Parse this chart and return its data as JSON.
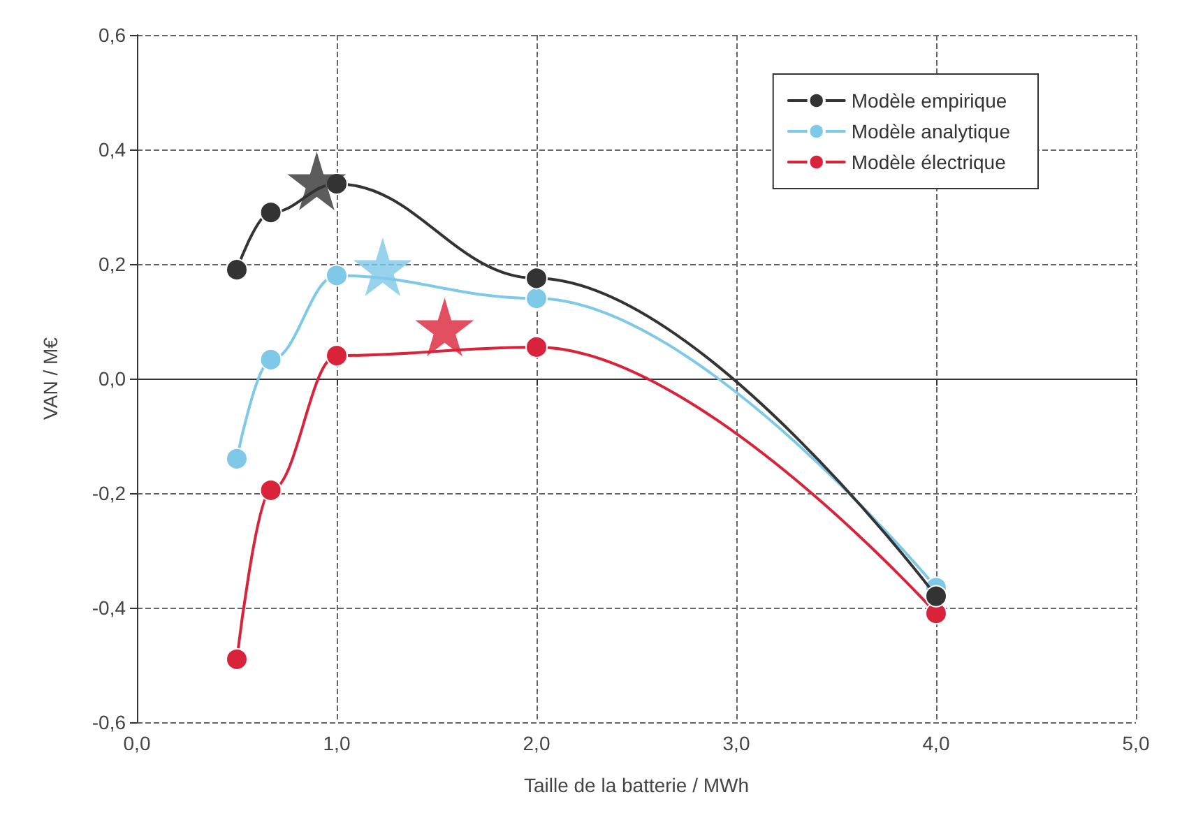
{
  "chart_data": {
    "type": "line",
    "xlabel": "Taille de la batterie / MWh",
    "ylabel": "VAN / M€",
    "xlim": [
      0,
      5
    ],
    "xticks": [
      {
        "value": 0,
        "label": "0,0"
      },
      {
        "value": 1,
        "label": "1,0"
      },
      {
        "value": 2,
        "label": "2,0"
      },
      {
        "value": 3,
        "label": "3,0"
      },
      {
        "value": 4,
        "label": "4,0"
      },
      {
        "value": 5,
        "label": "5,0"
      }
    ],
    "ylim": [
      -0.6,
      0.6
    ],
    "yticks": [
      {
        "value": -0.6,
        "label": "-0,6"
      },
      {
        "value": -0.4,
        "label": "-0,4"
      },
      {
        "value": -0.2,
        "label": "-0,2"
      },
      {
        "value": 0,
        "label": "0,0"
      },
      {
        "value": 0.2,
        "label": "0,2"
      },
      {
        "value": 0.4,
        "label": "0,4"
      },
      {
        "value": 0.6,
        "label": "0,6"
      }
    ],
    "grid": true,
    "legend": "top right",
    "marker": "circle",
    "line_style": "solid",
    "series": [
      {
        "name": "Modèle empirique",
        "color": "#333333",
        "x": [
          0.5,
          0.67,
          1.0,
          2.0,
          4.0
        ],
        "values": [
          0.19,
          0.29,
          0.34,
          0.175,
          -0.38
        ]
      },
      {
        "name": "Modèle analytique",
        "color": "#7ec8e8",
        "x": [
          0.5,
          0.67,
          1.0,
          2.0,
          4.0
        ],
        "values": [
          -0.14,
          0.033,
          0.18,
          0.14,
          -0.365
        ]
      },
      {
        "name": "Modèle électrique",
        "color": "#d9233a",
        "x": [
          0.5,
          0.67,
          1.0,
          2.0,
          4.0
        ],
        "values": [
          -0.49,
          -0.195,
          0.04,
          0.055,
          -0.41
        ]
      },
      {
        "type": "scatter",
        "marker": "star",
        "color": "#333333",
        "x": [
          0.9
        ],
        "values": [
          0.345
        ]
      },
      {
        "type": "scatter",
        "marker": "star",
        "color": "#7ec8e8",
        "x": [
          1.23
        ],
        "values": [
          0.195
        ]
      },
      {
        "type": "scatter",
        "marker": "star",
        "color": "#d9233a",
        "x": [
          1.54
        ],
        "values": [
          0.09
        ]
      }
    ]
  }
}
